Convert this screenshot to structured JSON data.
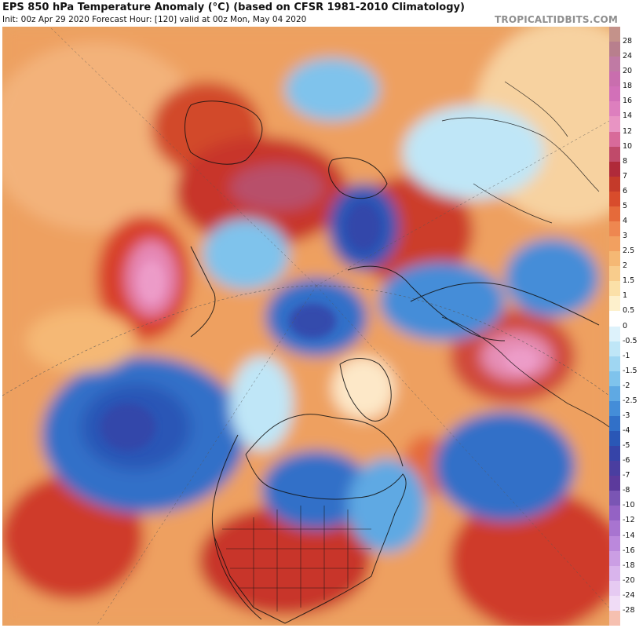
{
  "header": {
    "title": "EPS 850 hPa Temperature Anomaly (°C) (based on CFSR 1981-2010 Climatology)",
    "subtitle": "Init: 00z Apr 29 2020   Forecast Hour: [120]   valid at 00z Mon, May 04 2020",
    "brand": "TROPICALTIDBITS.COM"
  },
  "map": {
    "projection": "north-polar-stereographic",
    "variable": "850 hPa temperature anomaly",
    "units": "°C"
  },
  "colorbar": {
    "levels": [
      {
        "label": "28",
        "color": "#c4928a"
      },
      {
        "label": "24",
        "color": "#b87f8d"
      },
      {
        "label": "20",
        "color": "#c07aa4"
      },
      {
        "label": "18",
        "color": "#c96eae"
      },
      {
        "label": "16",
        "color": "#d270b8"
      },
      {
        "label": "14",
        "color": "#dd7fbe"
      },
      {
        "label": "12",
        "color": "#e894c3"
      },
      {
        "label": "10",
        "color": "#d86a9a"
      },
      {
        "label": "8",
        "color": "#c04a6a"
      },
      {
        "label": "7",
        "color": "#b02a3a"
      },
      {
        "label": "6",
        "color": "#c43a2a"
      },
      {
        "label": "5",
        "color": "#d84c2c"
      },
      {
        "label": "4",
        "color": "#e56a3a"
      },
      {
        "label": "3",
        "color": "#ee8750"
      },
      {
        "label": "2.5",
        "color": "#f2a060"
      },
      {
        "label": "2",
        "color": "#f5b874"
      },
      {
        "label": "1.5",
        "color": "#f8cc8c"
      },
      {
        "label": "1",
        "color": "#fbe0a8"
      },
      {
        "label": "0.5",
        "color": "#fdf0cc"
      },
      {
        "label": "0",
        "color": "#ffffff"
      },
      {
        "label": "-0.5",
        "color": "#ddf2fb"
      },
      {
        "label": "-1",
        "color": "#bfe6f7"
      },
      {
        "label": "-1.5",
        "color": "#9fd6f2"
      },
      {
        "label": "-2",
        "color": "#7fc3ec"
      },
      {
        "label": "-2.5",
        "color": "#5fa9e3"
      },
      {
        "label": "-3",
        "color": "#448dd8"
      },
      {
        "label": "-4",
        "color": "#3170c8"
      },
      {
        "label": "-5",
        "color": "#2a57b6"
      },
      {
        "label": "-6",
        "color": "#3644a8"
      },
      {
        "label": "-7",
        "color": "#4a3ea0"
      },
      {
        "label": "-8",
        "color": "#5c3a9c"
      },
      {
        "label": "-10",
        "color": "#7a55b4"
      },
      {
        "label": "-12",
        "color": "#9462c4"
      },
      {
        "label": "-14",
        "color": "#a874d0"
      },
      {
        "label": "-16",
        "color": "#bb88dc"
      },
      {
        "label": "-18",
        "color": "#cb9ee4"
      },
      {
        "label": "-20",
        "color": "#d9b4ec"
      },
      {
        "label": "-24",
        "color": "#e6caf2"
      },
      {
        "label": "-28",
        "color": "#f0dcf6"
      },
      {
        "label": "",
        "color": "#f6c0b0"
      }
    ]
  }
}
